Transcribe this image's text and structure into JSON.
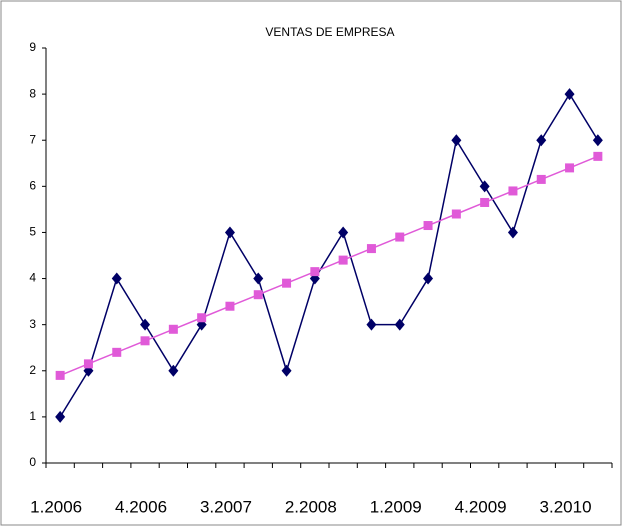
{
  "chart_data": {
    "type": "line",
    "title": "VENTAS DE EMPRESA",
    "categories": [
      "1.2006",
      null,
      null,
      "4.2006",
      null,
      null,
      "3.2007",
      null,
      null,
      "2.2008",
      null,
      null,
      "1.2009",
      null,
      null,
      "4.2009",
      null,
      null,
      "3.2010",
      null
    ],
    "series": [
      {
        "color": "#000066",
        "marker": "diamond",
        "values": [
          1,
          2,
          4,
          3,
          2,
          3,
          5,
          4,
          2,
          4,
          5,
          3,
          3,
          4,
          7,
          6,
          5,
          7,
          8,
          7
        ]
      },
      {
        "color": "#e05ad8",
        "marker": "square",
        "values": [
          1.9,
          2.15,
          2.4,
          2.65,
          2.9,
          3.15,
          3.4,
          3.65,
          3.9,
          4.15,
          4.4,
          4.65,
          4.9,
          5.15,
          5.4,
          5.65,
          5.9,
          6.15,
          6.4,
          6.65
        ]
      }
    ],
    "ylim": [
      0,
      9
    ],
    "yticks": [
      0,
      1,
      2,
      3,
      4,
      5,
      6,
      7,
      8,
      9
    ],
    "grid": false
  }
}
